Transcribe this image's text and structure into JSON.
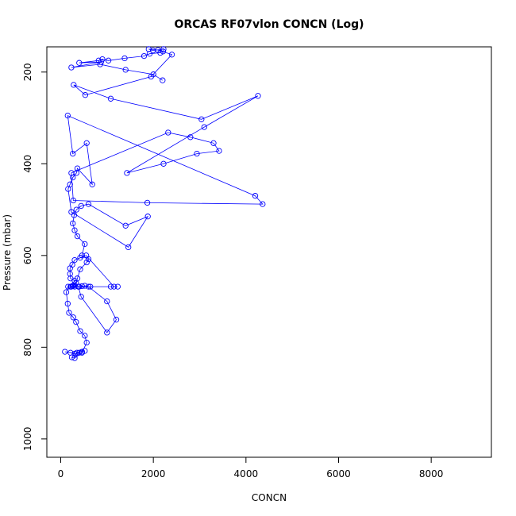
{
  "chart_data": {
    "type": "line",
    "title": "ORCAS RF07vlon CONCN (Log)",
    "xlabel": "CONCN",
    "ylabel": "Pressure (mbar)",
    "xlim": [
      -300,
      9300
    ],
    "ylim": [
      1040,
      145
    ],
    "y_reversed": true,
    "x_ticks": [
      0,
      2000,
      4000,
      6000,
      8000
    ],
    "y_ticks": [
      200,
      400,
      600,
      800,
      1000
    ],
    "grid": false,
    "marker": "open-circle",
    "line_color": "#0000ff",
    "series": [
      {
        "x": [
          90,
          210,
          300,
          330,
          400,
          460,
          520,
          350,
          240,
          300,
          460,
          560,
          520,
          420,
          330,
          270,
          180,
          150,
          120,
          160,
          220,
          260,
          300,
          400,
          460,
          520,
          600,
          1000,
          1200,
          1000,
          440,
          380,
          300,
          210,
          200,
          200,
          250,
          300,
          420,
          550,
          1150,
          1230,
          1080,
          640,
          380,
          260,
          210,
          230,
          280,
          330,
          360,
          420,
          560,
          600,
          460,
          520,
          360,
          300,
          260,
          290,
          340,
          440,
          600,
          1400,
          1880,
          1460,
          230,
          160,
          200,
          260,
          340,
          360,
          680,
          560,
          260,
          150,
          4200,
          4360,
          1870,
          270,
          230,
          2320,
          2800,
          3300,
          3420,
          2940,
          2220,
          1430,
          3100,
          4260,
          3040,
          1080,
          280,
          530,
          1950,
          2400,
          2100,
          1900,
          1990,
          2220,
          2210,
          2150,
          1920,
          1800,
          1380,
          1030,
          900,
          820,
          400,
          870,
          230,
          850,
          1400,
          2000,
          2200
        ],
        "y": [
          810,
          812,
          814,
          815,
          812,
          810,
          808,
          812,
          822,
          824,
          812,
          790,
          775,
          765,
          745,
          735,
          725,
          705,
          680,
          668,
          668,
          667,
          668,
          668,
          667,
          666,
          668,
          700,
          740,
          768,
          690,
          668,
          655,
          650,
          640,
          628,
          620,
          610,
          605,
          600,
          668,
          668,
          668,
          668,
          668,
          666,
          668,
          668,
          665,
          660,
          650,
          630,
          615,
          608,
          600,
          575,
          558,
          545,
          530,
          512,
          500,
          492,
          488,
          535,
          515,
          582,
          505,
          455,
          445,
          430,
          420,
          410,
          445,
          355,
          378,
          295,
          470,
          488,
          485,
          480,
          420,
          332,
          342,
          355,
          372,
          378,
          400,
          420,
          320,
          252,
          303,
          258,
          228,
          250,
          210,
          162,
          152,
          150,
          153,
          150,
          155,
          158,
          160,
          165,
          170,
          175,
          172,
          175,
          180,
          178,
          190,
          183,
          195,
          205,
          218
        ]
      }
    ]
  }
}
